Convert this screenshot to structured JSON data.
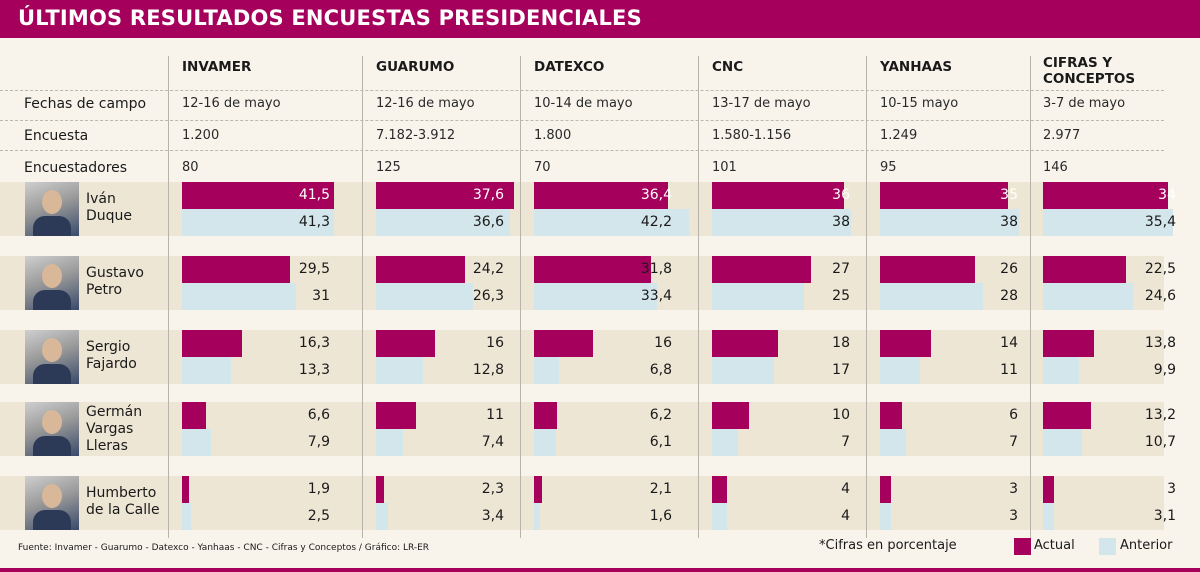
{
  "title": "ÚLTIMOS RESULTADOS ENCUESTAS PRESIDENCIALES",
  "row_labels": {
    "fechas": "Fechas de campo",
    "encuesta": "Encuesta",
    "encuestadores": "Encuestadores"
  },
  "pollsters": [
    {
      "name": "INVAMER",
      "name2": "",
      "fechas": "12-16 de mayo",
      "encuesta": "1.200",
      "encuestadores": "80"
    },
    {
      "name": "GUARUMO",
      "name2": "",
      "fechas": "12-16 de mayo",
      "encuesta": "7.182-3.912",
      "encuestadores": "125"
    },
    {
      "name": "DATEXCO",
      "name2": "",
      "fechas": "10-14 de mayo",
      "encuesta": "1.800",
      "encuestadores": "70"
    },
    {
      "name": "CNC",
      "name2": "",
      "fechas": "13-17 de mayo",
      "encuesta": "1.580-1.156",
      "encuestadores": "101"
    },
    {
      "name": "YANHAAS",
      "name2": "",
      "fechas": "10-15 mayo",
      "encuesta": "1.249",
      "encuestadores": "95"
    },
    {
      "name": "CIFRAS Y",
      "name2": "CONCEPTOS",
      "fechas": "3-7 de mayo",
      "encuesta": "2.977",
      "encuestadores": "146"
    }
  ],
  "candidates": [
    {
      "line1": "Iván",
      "line2": "Duque",
      "line3": ""
    },
    {
      "line1": "Gustavo",
      "line2": "Petro",
      "line3": ""
    },
    {
      "line1": "Sergio",
      "line2": "Fajardo",
      "line3": ""
    },
    {
      "line1": "Germán",
      "line2": "Vargas",
      "line3": "Lleras"
    },
    {
      "line1": "Humberto",
      "line2": "de la Calle",
      "line3": ""
    }
  ],
  "chart_data": {
    "type": "bar",
    "title": "ÚLTIMOS RESULTADOS ENCUESTAS PRESIDENCIALES",
    "unit": "porcentaje",
    "categories": [
      "INVAMER",
      "GUARUMO",
      "DATEXCO",
      "CNC",
      "YANHAAS",
      "CIFRAS Y CONCEPTOS"
    ],
    "candidates": [
      "Iván Duque",
      "Gustavo Petro",
      "Sergio Fajardo",
      "Germán Vargas Lleras",
      "Humberto de la Calle"
    ],
    "series": [
      {
        "name": "Actual",
        "color": "#a5005b",
        "values": [
          [
            41.5,
            37.6,
            36.4,
            36,
            35,
            34
          ],
          [
            29.5,
            24.2,
            31.8,
            27,
            26,
            22.5
          ],
          [
            16.3,
            16,
            16,
            18,
            14,
            13.8
          ],
          [
            6.6,
            11,
            6.2,
            10,
            6,
            13.2
          ],
          [
            1.9,
            2.3,
            2.1,
            4,
            3,
            3
          ]
        ]
      },
      {
        "name": "Anterior",
        "color": "#d3e6ec",
        "values": [
          [
            41.3,
            36.6,
            42.2,
            38,
            38,
            35.4
          ],
          [
            31,
            26.3,
            33.4,
            25,
            28,
            24.6
          ],
          [
            13.3,
            12.8,
            6.8,
            17,
            11,
            9.9
          ],
          [
            7.9,
            7.4,
            6.1,
            7,
            7,
            10.7
          ],
          [
            2.5,
            3.4,
            1.6,
            4,
            3,
            3.1
          ]
        ]
      }
    ],
    "labels": {
      "actual": [
        [
          "41,5",
          "37,6",
          "36,4",
          "36",
          "35",
          "34"
        ],
        [
          "29,5",
          "24,2",
          "31,8",
          "27",
          "26",
          "22,5"
        ],
        [
          "16,3",
          "16",
          "16",
          "18",
          "14",
          "13,8"
        ],
        [
          "6,6",
          "11",
          "6,2",
          "10",
          "6",
          "13,2"
        ],
        [
          "1,9",
          "2,3",
          "2,1",
          "4",
          "3",
          "3"
        ]
      ],
      "anterior": [
        [
          "41,3",
          "36,6",
          "42,2",
          "38",
          "38",
          "35,4"
        ],
        [
          "31",
          "26,3",
          "33,4",
          "25",
          "28",
          "24,6"
        ],
        [
          "13,3",
          "12,8",
          "6,8",
          "17",
          "11",
          "9,9"
        ],
        [
          "7,9",
          "7,4",
          "6,1",
          "7",
          "7",
          "10,7"
        ],
        [
          "2,5",
          "3,4",
          "1,6",
          "4",
          "3",
          "3,1"
        ]
      ]
    },
    "legend": [
      "Actual",
      "Anterior"
    ],
    "legend_position": "bottom-right"
  },
  "footer": {
    "source": "Fuente: Invamer - Guarumo - Datexco - Yanhaas - CNC - Cifras y Conceptos  / Gráfico: LR-ER",
    "note": "*Cifras en porcentaje",
    "legend_actual": "Actual",
    "legend_anterior": "Anterior"
  },
  "colors": {
    "brand": "#a5005b",
    "anterior": "#d3e6ec",
    "band": "#ede6d5",
    "background": "#f8f4ec"
  }
}
